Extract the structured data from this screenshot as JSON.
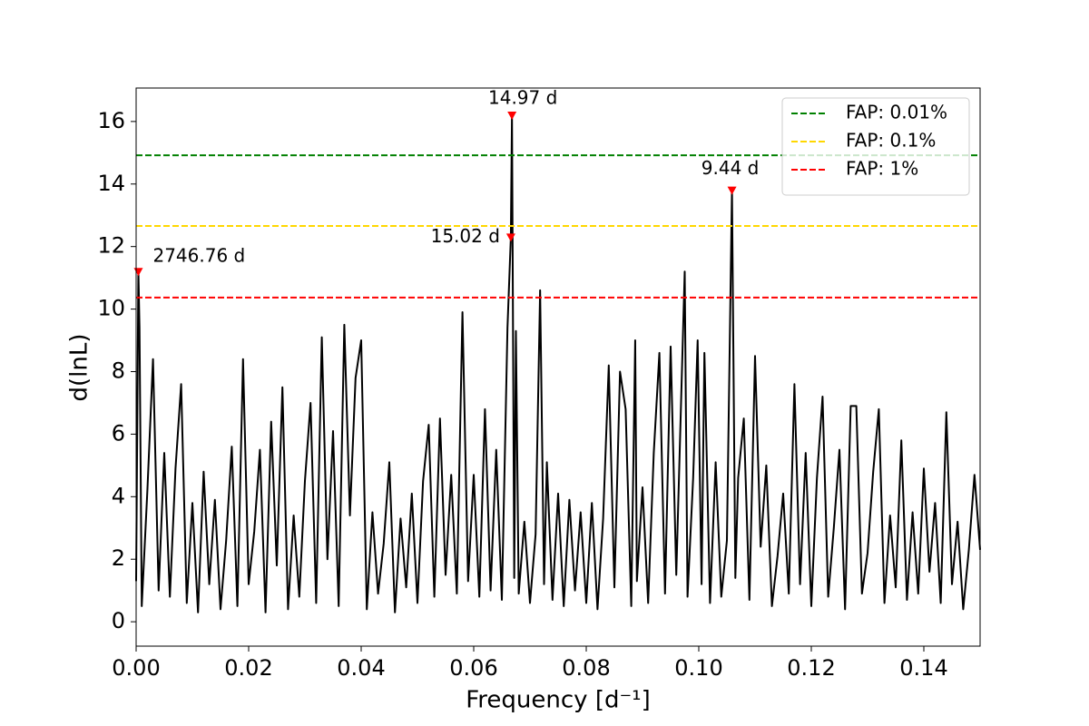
{
  "chart_data": {
    "type": "line",
    "x_label": "Frequency [d⁻¹]",
    "y_label": "d(lnL)",
    "xlim": [
      0,
      0.15
    ],
    "ylim": [
      -0.78,
      17.07
    ],
    "xticks": [
      {
        "value": 0,
        "label": "0.00"
      },
      0.02,
      0.04,
      0.06,
      0.08,
      {
        "value": 0.1,
        "label": "0.10"
      },
      0.12,
      0.14
    ],
    "yticks": [
      0,
      2,
      4,
      6,
      8,
      10,
      12,
      14,
      16
    ],
    "series": [
      {
        "color": "#000000",
        "x": [
          0,
          0.0004,
          0.0006,
          0.001,
          0.002,
          0.003,
          0.004,
          0.005,
          0.006,
          0.007,
          0.008,
          0.009,
          0.01,
          0.011,
          0.012,
          0.013,
          0.014,
          0.015,
          0.016,
          0.017,
          0.018,
          0.019,
          0.02,
          0.021,
          0.022,
          0.023,
          0.024,
          0.025,
          0.026,
          0.027,
          0.028,
          0.029,
          0.03,
          0.031,
          0.032,
          0.033,
          0.034,
          0.035,
          0.036,
          0.037,
          0.038,
          0.039,
          0.04,
          0.041,
          0.042,
          0.043,
          0.044,
          0.045,
          0.046,
          0.047,
          0.048,
          0.049,
          0.05,
          0.051,
          0.052,
          0.053,
          0.054,
          0.055,
          0.056,
          0.057,
          0.058,
          0.059,
          0.06,
          0.061,
          0.062,
          0.063,
          0.064,
          0.065,
          0.066,
          0.0666,
          0.0668,
          0.0672,
          0.0675,
          0.068,
          0.069,
          0.07,
          0.071,
          0.0718,
          0.0725,
          0.073,
          0.074,
          0.075,
          0.076,
          0.077,
          0.078,
          0.079,
          0.08,
          0.081,
          0.082,
          0.083,
          0.084,
          0.085,
          0.086,
          0.087,
          0.088,
          0.0887,
          0.089,
          0.09,
          0.091,
          0.092,
          0.093,
          0.094,
          0.095,
          0.096,
          0.0975,
          0.098,
          0.099,
          0.0998,
          0.1005,
          0.101,
          0.102,
          0.103,
          0.104,
          0.105,
          0.1059,
          0.1065,
          0.107,
          0.108,
          0.109,
          0.11,
          0.111,
          0.112,
          0.113,
          0.114,
          0.115,
          0.116,
          0.117,
          0.118,
          0.119,
          0.12,
          0.121,
          0.122,
          0.123,
          0.124,
          0.125,
          0.126,
          0.127,
          0.128,
          0.129,
          0.13,
          0.131,
          0.132,
          0.133,
          0.134,
          0.135,
          0.136,
          0.137,
          0.138,
          0.139,
          0.14,
          0.141,
          0.142,
          0.143,
          0.144,
          0.145,
          0.146,
          0.147,
          0.148,
          0.149,
          0.15
        ],
        "values": [
          1.3,
          11.2,
          9.4,
          0.5,
          4.2,
          8.4,
          1.0,
          5.4,
          0.8,
          4.9,
          7.6,
          0.6,
          3.8,
          0.3,
          4.8,
          1.2,
          3.9,
          0.4,
          2.6,
          5.6,
          0.5,
          8.4,
          1.2,
          2.9,
          5.5,
          0.3,
          6.4,
          1.8,
          7.5,
          0.4,
          3.4,
          0.8,
          4.5,
          7.0,
          0.6,
          9.1,
          2.0,
          6.1,
          0.5,
          9.5,
          3.4,
          7.8,
          9.0,
          0.4,
          3.5,
          0.9,
          2.5,
          5.1,
          0.3,
          3.3,
          1.1,
          4.1,
          0.6,
          4.5,
          6.3,
          0.8,
          6.5,
          1.5,
          4.7,
          0.9,
          9.9,
          1.3,
          4.7,
          0.8,
          6.8,
          1.0,
          5.5,
          0.7,
          9.4,
          12.3,
          16.2,
          1.4,
          9.3,
          0.9,
          3.2,
          0.6,
          2.8,
          10.6,
          1.2,
          5.1,
          0.7,
          4.1,
          0.5,
          3.9,
          1.0,
          3.5,
          0.6,
          3.8,
          0.4,
          3.3,
          8.2,
          1.1,
          8.0,
          6.8,
          0.5,
          9.0,
          1.3,
          4.3,
          0.6,
          5.4,
          8.6,
          0.9,
          8.8,
          1.5,
          11.2,
          0.8,
          4.6,
          9.0,
          1.2,
          8.6,
          0.6,
          5.1,
          0.8,
          2.6,
          13.8,
          1.4,
          4.6,
          6.5,
          0.7,
          8.5,
          2.4,
          5.0,
          0.5,
          2.1,
          4.1,
          0.9,
          7.6,
          1.2,
          5.4,
          0.5,
          4.6,
          7.2,
          0.8,
          3.0,
          5.5,
          0.4,
          6.9,
          6.9,
          0.9,
          2.2,
          4.8,
          6.8,
          0.6,
          3.4,
          1.1,
          5.8,
          0.7,
          3.5,
          0.9,
          4.9,
          1.6,
          3.8,
          0.6,
          6.7,
          1.2,
          3.2,
          0.4,
          2.3,
          4.7,
          2.3
        ]
      }
    ],
    "peaks": {
      "color": "#ff0000",
      "x": [
        0.0004,
        0.0668,
        0.0666,
        0.1059
      ],
      "values": [
        11.2,
        16.2,
        12.3,
        13.8
      ],
      "labels": [
        "2746.76 d",
        "14.97 d",
        "15.02 d",
        "9.44 d"
      ]
    },
    "thresholds": [
      {
        "name": "FAP: 0.01%",
        "color": "#008000",
        "value": 14.92
      },
      {
        "name": "FAP: 0.1%",
        "color": "#ffd700",
        "value": 12.66
      },
      {
        "name": "FAP: 1%",
        "color": "#ff0000",
        "value": 10.37
      }
    ],
    "legend": "upper right"
  }
}
